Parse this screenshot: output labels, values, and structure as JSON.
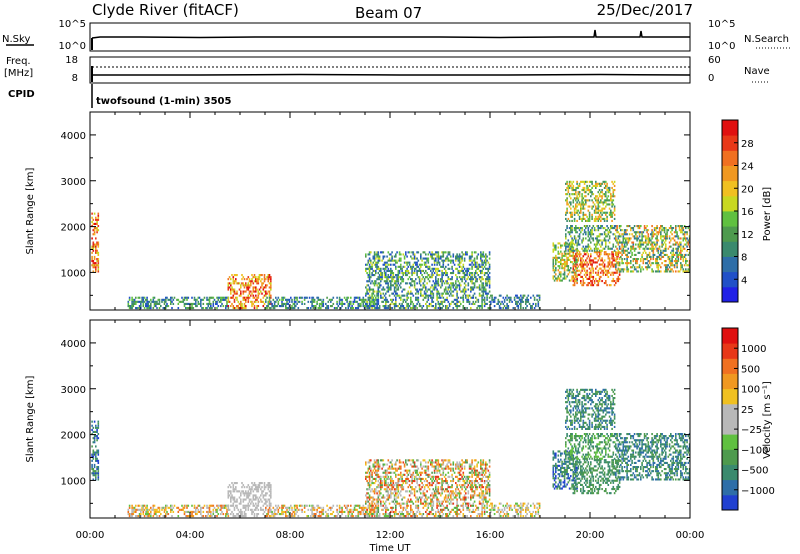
{
  "header": {
    "station": "Clyde River (fitACF)",
    "beam": "Beam 07",
    "date": "25/Dec/2017"
  },
  "status_panels": {
    "nsky_label": "N.Sky",
    "nsearch_label": "N.Search",
    "freq_label_1": "Freq.",
    "freq_label_2": "[MHz]",
    "nave_label": "Nave",
    "cpid_label": "CPID",
    "noise_ticks_left": [
      "10^5",
      "10^0"
    ],
    "noise_ticks_right": [
      "10^5",
      "10^0"
    ],
    "freq_ticks_left": [
      "18",
      "8"
    ],
    "nave_ticks_right": [
      "60",
      "0"
    ],
    "cpid_text": "twofsound (1-min) 3505"
  },
  "chart_data": [
    {
      "type": "heatmap",
      "name": "power",
      "ylabel": "Slant Range [km]",
      "xlabel": "Time UT",
      "x_ticks": [
        "00:00",
        "04:00",
        "08:00",
        "12:00",
        "16:00",
        "20:00",
        "00:00"
      ],
      "x_range_hours": [
        0,
        24
      ],
      "y_range_km": [
        180,
        4500
      ],
      "y_ticks": [
        1000,
        2000,
        3000,
        4000
      ],
      "colorbar": {
        "label": "Power [dB]",
        "ticks": [
          "4",
          "8",
          "12",
          "16",
          "20",
          "24",
          "28"
        ],
        "colors": [
          "#2020e6",
          "#2050c8",
          "#2e6ea8",
          "#3a8a6e",
          "#4e9a4e",
          "#60c040",
          "#c8d820",
          "#f0c020",
          "#f09820",
          "#f07020",
          "#e83818",
          "#e01010"
        ]
      },
      "echo_regions": [
        {
          "t": [
            0.05,
            0.35
          ],
          "r": [
            1000,
            2300
          ],
          "level": [
            6,
            11
          ]
        },
        {
          "t": [
            1.5,
            5.5
          ],
          "r": [
            200,
            450
          ],
          "level": [
            1,
            5
          ]
        },
        {
          "t": [
            5.5,
            7.2
          ],
          "r": [
            200,
            950
          ],
          "level": [
            6,
            11
          ]
        },
        {
          "t": [
            7.0,
            11.5
          ],
          "r": [
            200,
            450
          ],
          "level": [
            1,
            5
          ]
        },
        {
          "t": [
            11.0,
            16.0
          ],
          "r": [
            200,
            1450
          ],
          "level": [
            1,
            6
          ]
        },
        {
          "t": [
            16.0,
            18.0
          ],
          "r": [
            200,
            500
          ],
          "level": [
            1,
            4
          ]
        },
        {
          "t": [
            18.5,
            19.5
          ],
          "r": [
            800,
            1650
          ],
          "level": [
            3,
            8
          ]
        },
        {
          "t": [
            19.3,
            21.2
          ],
          "r": [
            700,
            1450
          ],
          "level": [
            7,
            11
          ]
        },
        {
          "t": [
            19.0,
            21.0
          ],
          "r": [
            1450,
            2000
          ],
          "level": [
            2,
            6
          ]
        },
        {
          "t": [
            19.0,
            21.0
          ],
          "r": [
            2100,
            3000
          ],
          "level": [
            3,
            8
          ]
        },
        {
          "t": [
            21.0,
            24.0
          ],
          "r": [
            1000,
            2000
          ],
          "level": [
            2,
            9
          ]
        }
      ]
    },
    {
      "type": "heatmap",
      "name": "velocity",
      "ylabel": "Slant Range [km]",
      "xlabel": "Time UT",
      "x_ticks": [
        "00:00",
        "04:00",
        "08:00",
        "12:00",
        "16:00",
        "20:00",
        "00:00"
      ],
      "x_range_hours": [
        0,
        24
      ],
      "y_range_km": [
        180,
        4500
      ],
      "y_ticks": [
        1000,
        2000,
        3000,
        4000
      ],
      "colorbar": {
        "label": "Velocity [m s⁻¹]",
        "ticks": [
          "1000",
          "500",
          "100",
          "25",
          "−25",
          "−100",
          "−500",
          "−1000"
        ],
        "colors": [
          "#2040d0",
          "#2e6ea8",
          "#3a8a6e",
          "#4e9a4e",
          "#60c040",
          "#b8b8b8",
          "#b8b8b8",
          "#f0c020",
          "#f09820",
          "#f07020",
          "#e83818",
          "#e01010"
        ]
      },
      "echo_regions": [
        {
          "t": [
            0.05,
            0.35
          ],
          "r": [
            1000,
            2300
          ],
          "level": [
            0,
            3
          ]
        },
        {
          "t": [
            1.5,
            5.5
          ],
          "r": [
            200,
            450
          ],
          "level": [
            4,
            9
          ]
        },
        {
          "t": [
            5.5,
            7.2
          ],
          "r": [
            200,
            950
          ],
          "level": [
            5,
            6
          ]
        },
        {
          "t": [
            7.0,
            11.5
          ],
          "r": [
            200,
            450
          ],
          "level": [
            4,
            9
          ]
        },
        {
          "t": [
            11.0,
            16.0
          ],
          "r": [
            200,
            1450
          ],
          "level": [
            3,
            10
          ]
        },
        {
          "t": [
            16.0,
            18.0
          ],
          "r": [
            200,
            500
          ],
          "level": [
            4,
            8
          ]
        },
        {
          "t": [
            18.5,
            19.5
          ],
          "r": [
            800,
            1650
          ],
          "level": [
            0,
            3
          ]
        },
        {
          "t": [
            19.3,
            21.2
          ],
          "r": [
            700,
            1450
          ],
          "level": [
            2,
            3
          ]
        },
        {
          "t": [
            19.0,
            21.0
          ],
          "r": [
            1450,
            2000
          ],
          "level": [
            2,
            4
          ]
        },
        {
          "t": [
            19.0,
            21.0
          ],
          "r": [
            2100,
            3000
          ],
          "level": [
            1,
            3
          ]
        },
        {
          "t": [
            21.0,
            24.0
          ],
          "r": [
            1000,
            2000
          ],
          "level": [
            1,
            3
          ]
        }
      ]
    }
  ]
}
